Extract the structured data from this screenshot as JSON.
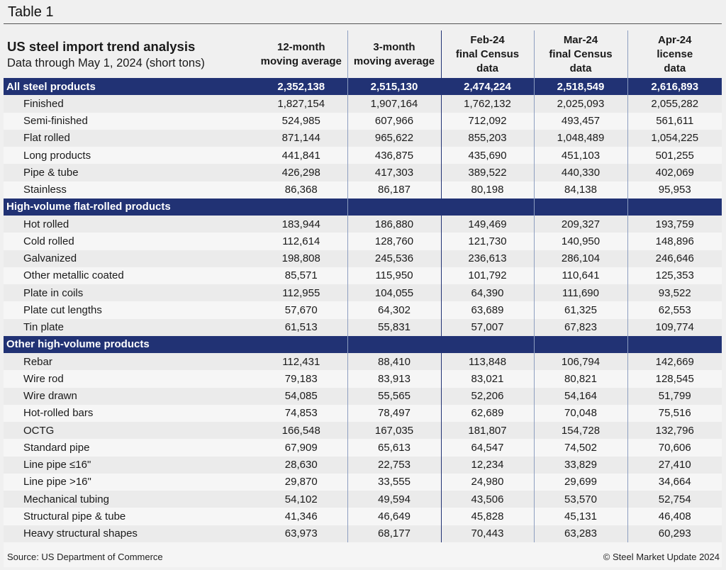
{
  "page_title": "Table 1",
  "chart_data": {
    "type": "table",
    "title": "US steel import trend analysis",
    "subtitle": "Data through May 1, 2024 (short tons)",
    "columns": [
      [
        "12-month",
        "moving average"
      ],
      [
        "3-month",
        "moving average"
      ],
      [
        "Feb-24",
        "final Census",
        "data"
      ],
      [
        "Mar-24",
        "final Census",
        "data"
      ],
      [
        "Apr-24",
        "license",
        "data"
      ]
    ],
    "rows": [
      {
        "section": true,
        "label": "All steel products",
        "values": [
          "2,352,138",
          "2,515,130",
          "2,474,224",
          "2,518,549",
          "2,616,893"
        ]
      },
      {
        "label": "Finished",
        "values": [
          "1,827,154",
          "1,907,164",
          "1,762,132",
          "2,025,093",
          "2,055,282"
        ]
      },
      {
        "label": "Semi-finished",
        "values": [
          "524,985",
          "607,966",
          "712,092",
          "493,457",
          "561,611"
        ]
      },
      {
        "label": "Flat rolled",
        "values": [
          "871,144",
          "965,622",
          "855,203",
          "1,048,489",
          "1,054,225"
        ]
      },
      {
        "label": "Long products",
        "values": [
          "441,841",
          "436,875",
          "435,690",
          "451,103",
          "501,255"
        ]
      },
      {
        "label": "Pipe & tube",
        "values": [
          "426,298",
          "417,303",
          "389,522",
          "440,330",
          "402,069"
        ]
      },
      {
        "label": "Stainless",
        "values": [
          "86,368",
          "86,187",
          "80,198",
          "84,138",
          "95,953"
        ]
      },
      {
        "section": true,
        "label": "High-volume flat-rolled products",
        "values": [
          "",
          "",
          "",
          "",
          ""
        ]
      },
      {
        "label": "Hot rolled",
        "values": [
          "183,944",
          "186,880",
          "149,469",
          "209,327",
          "193,759"
        ]
      },
      {
        "label": "Cold rolled",
        "values": [
          "112,614",
          "128,760",
          "121,730",
          "140,950",
          "148,896"
        ]
      },
      {
        "label": "Galvanized",
        "values": [
          "198,808",
          "245,536",
          "236,613",
          "286,104",
          "246,646"
        ]
      },
      {
        "label": "Other metallic coated",
        "values": [
          "85,571",
          "115,950",
          "101,792",
          "110,641",
          "125,353"
        ]
      },
      {
        "label": "Plate in coils",
        "values": [
          "112,955",
          "104,055",
          "64,390",
          "111,690",
          "93,522"
        ]
      },
      {
        "label": "Plate cut lengths",
        "values": [
          "57,670",
          "64,302",
          "63,689",
          "61,325",
          "62,553"
        ]
      },
      {
        "label": "Tin plate",
        "values": [
          "61,513",
          "55,831",
          "57,007",
          "67,823",
          "109,774"
        ]
      },
      {
        "section": true,
        "label": "Other high-volume products",
        "values": [
          "",
          "",
          "",
          "",
          ""
        ]
      },
      {
        "label": "Rebar",
        "values": [
          "112,431",
          "88,410",
          "113,848",
          "106,794",
          "142,669"
        ]
      },
      {
        "label": "Wire rod",
        "values": [
          "79,183",
          "83,913",
          "83,021",
          "80,821",
          "128,545"
        ]
      },
      {
        "label": "Wire drawn",
        "values": [
          "54,085",
          "55,565",
          "52,206",
          "54,164",
          "51,799"
        ]
      },
      {
        "label": "Hot-rolled bars",
        "values": [
          "74,853",
          "78,497",
          "62,689",
          "70,048",
          "75,516"
        ]
      },
      {
        "label": "OCTG",
        "values": [
          "166,548",
          "167,035",
          "181,807",
          "154,728",
          "132,796"
        ]
      },
      {
        "label": "Standard pipe",
        "values": [
          "67,909",
          "65,613",
          "64,547",
          "74,502",
          "70,606"
        ]
      },
      {
        "label": "Line pipe ≤16\"",
        "values": [
          "28,630",
          "22,753",
          "12,234",
          "33,829",
          "27,410"
        ]
      },
      {
        "label": "Line pipe >16\"",
        "values": [
          "29,870",
          "33,555",
          "24,980",
          "29,699",
          "34,664"
        ]
      },
      {
        "label": "Mechanical tubing",
        "values": [
          "54,102",
          "49,594",
          "43,506",
          "53,570",
          "52,754"
        ]
      },
      {
        "label": "Structural pipe & tube",
        "values": [
          "41,346",
          "46,649",
          "45,828",
          "45,131",
          "46,408"
        ]
      },
      {
        "label": "Heavy structural shapes",
        "values": [
          "63,973",
          "68,177",
          "70,443",
          "63,283",
          "60,293"
        ]
      }
    ]
  },
  "footer": {
    "source": "Source: US Department of Commerce",
    "copyright": "© Steel Market Update 2024"
  },
  "colors": {
    "section_bg": "#213274",
    "section_text": "#ffffff"
  }
}
